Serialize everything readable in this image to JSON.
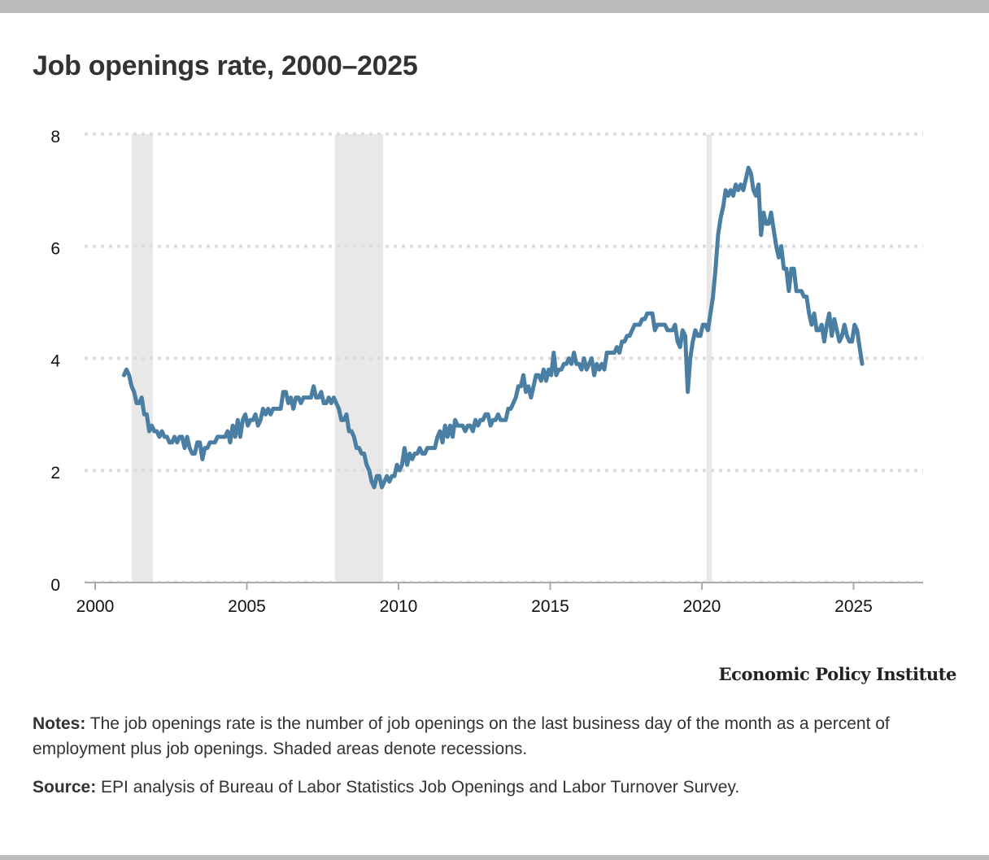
{
  "title": "Job openings rate, 2000–2025",
  "logo": "Economic Policy Institute",
  "notes": {
    "label": "Notes:",
    "text": " The job openings rate is the number of job openings on the last business day of the month as a percent of employment plus job openings. Shaded areas denote recessions."
  },
  "source": {
    "label": "Source:",
    "text": " EPI analysis of Bureau of Labor Statistics Job Openings and Labor Turnover Survey."
  },
  "colors": {
    "line": "#4a7fa3",
    "recession": "#e8e8e8",
    "grid": "#dddddd",
    "axis": "#aaaaaa"
  },
  "chart_data": {
    "type": "line",
    "title": "Job openings rate, 2000–2025",
    "xlabel": "",
    "ylabel": "",
    "xlim": [
      1999.7,
      2027.2
    ],
    "ylim": [
      0,
      8
    ],
    "grid": true,
    "yticks": [
      0,
      2,
      4,
      6,
      8
    ],
    "xticks": [
      2000,
      2005,
      2010,
      2015,
      2020,
      2025
    ],
    "recessions": [
      [
        2001.2,
        2001.9
      ],
      [
        2007.9,
        2009.5
      ],
      [
        2020.15,
        2020.33
      ]
    ],
    "series": [
      {
        "name": "Job openings rate",
        "start": 2000.95,
        "step": 0.08333,
        "values": [
          3.7,
          3.8,
          3.7,
          3.5,
          3.4,
          3.2,
          3.2,
          3.3,
          3.0,
          3.0,
          2.7,
          2.8,
          2.7,
          2.7,
          2.6,
          2.7,
          2.6,
          2.6,
          2.5,
          2.5,
          2.6,
          2.5,
          2.6,
          2.6,
          2.4,
          2.6,
          2.4,
          2.3,
          2.3,
          2.5,
          2.5,
          2.2,
          2.4,
          2.4,
          2.5,
          2.5,
          2.5,
          2.6,
          2.6,
          2.6,
          2.6,
          2.7,
          2.5,
          2.8,
          2.6,
          2.9,
          2.6,
          2.9,
          3.0,
          2.8,
          2.9,
          2.9,
          3.0,
          2.8,
          2.9,
          3.1,
          3.0,
          3.1,
          3.0,
          3.1,
          3.1,
          3.1,
          3.1,
          3.4,
          3.4,
          3.2,
          3.3,
          3.1,
          3.3,
          3.3,
          3.2,
          3.3,
          3.3,
          3.3,
          3.3,
          3.5,
          3.3,
          3.3,
          3.4,
          3.2,
          3.2,
          3.3,
          3.2,
          3.3,
          3.2,
          3.1,
          2.9,
          2.9,
          3.0,
          2.7,
          2.7,
          2.6,
          2.4,
          2.4,
          2.3,
          2.3,
          2.1,
          2.0,
          1.8,
          1.7,
          1.9,
          1.9,
          1.7,
          1.8,
          1.9,
          1.8,
          1.9,
          1.9,
          2.1,
          2.0,
          2.1,
          2.4,
          2.1,
          2.3,
          2.2,
          2.3,
          2.3,
          2.4,
          2.3,
          2.3,
          2.4,
          2.4,
          2.4,
          2.4,
          2.6,
          2.7,
          2.5,
          2.8,
          2.6,
          2.8,
          2.6,
          2.9,
          2.8,
          2.8,
          2.8,
          2.7,
          2.8,
          2.8,
          2.7,
          2.9,
          2.8,
          2.9,
          2.9,
          3.0,
          3.0,
          2.8,
          2.9,
          2.9,
          3.0,
          2.9,
          2.9,
          2.9,
          3.1,
          3.1,
          3.2,
          3.3,
          3.5,
          3.5,
          3.7,
          3.4,
          3.5,
          3.3,
          3.5,
          3.7,
          3.7,
          3.6,
          3.8,
          3.6,
          3.8,
          3.7,
          4.1,
          3.7,
          3.8,
          3.8,
          3.9,
          3.9,
          4.0,
          3.9,
          4.1,
          3.9,
          3.9,
          3.8,
          4.0,
          3.8,
          3.9,
          4.0,
          3.7,
          3.9,
          3.8,
          3.9,
          3.8,
          4.1,
          4.1,
          4.1,
          4.1,
          4.2,
          4.1,
          4.3,
          4.3,
          4.4,
          4.4,
          4.5,
          4.6,
          4.6,
          4.6,
          4.7,
          4.7,
          4.8,
          4.8,
          4.8,
          4.5,
          4.6,
          4.6,
          4.6,
          4.6,
          4.5,
          4.5,
          4.5,
          4.6,
          4.3,
          4.2,
          4.5,
          4.4,
          3.4,
          4.0,
          4.3,
          4.5,
          4.4,
          4.4,
          4.6,
          4.6,
          4.5,
          4.8,
          5.1,
          5.6,
          6.2,
          6.5,
          6.7,
          7.0,
          6.9,
          7.0,
          6.9,
          7.1,
          7.0,
          7.1,
          7.0,
          7.2,
          7.4,
          7.3,
          7.0,
          6.9,
          7.1,
          6.2,
          6.6,
          6.4,
          6.4,
          6.6,
          6.3,
          6.0,
          5.8,
          6.0,
          5.6,
          5.6,
          5.2,
          5.6,
          5.6,
          5.2,
          5.2,
          5.2,
          5.1,
          5.1,
          4.8,
          4.6,
          4.8,
          4.5,
          4.5,
          4.6,
          4.3,
          4.6,
          4.8,
          4.4,
          4.7,
          4.5,
          4.3,
          4.4,
          4.6,
          4.4,
          4.3,
          4.3,
          4.6,
          4.5,
          4.2,
          3.9
        ]
      }
    ]
  }
}
